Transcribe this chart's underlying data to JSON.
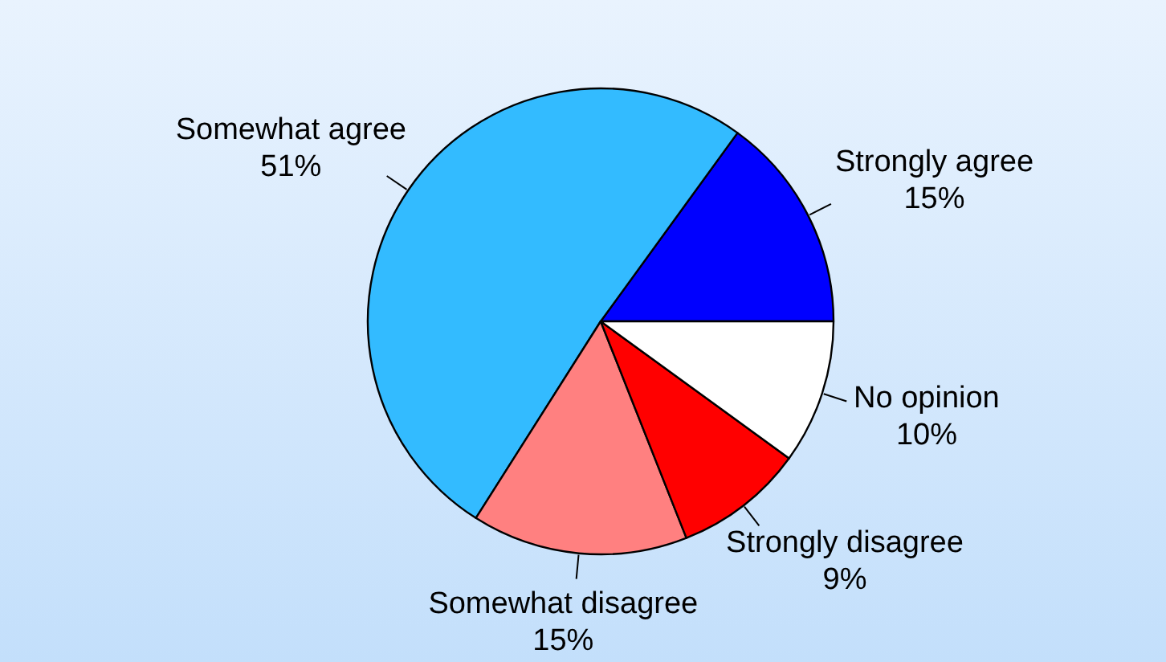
{
  "chart_data": {
    "type": "pie",
    "categories": [
      "Strongly agree",
      "Somewhat agree",
      "Somewhat disagree",
      "Strongly disagree",
      "No opinion"
    ],
    "values": [
      15,
      51,
      15,
      9,
      10
    ],
    "colors": [
      "#0000ff",
      "#33bbff",
      "#ff8080",
      "#ff0000",
      "#ffffff"
    ],
    "value_labels": [
      "15%",
      "51%",
      "15%",
      "9%",
      "10%"
    ]
  }
}
